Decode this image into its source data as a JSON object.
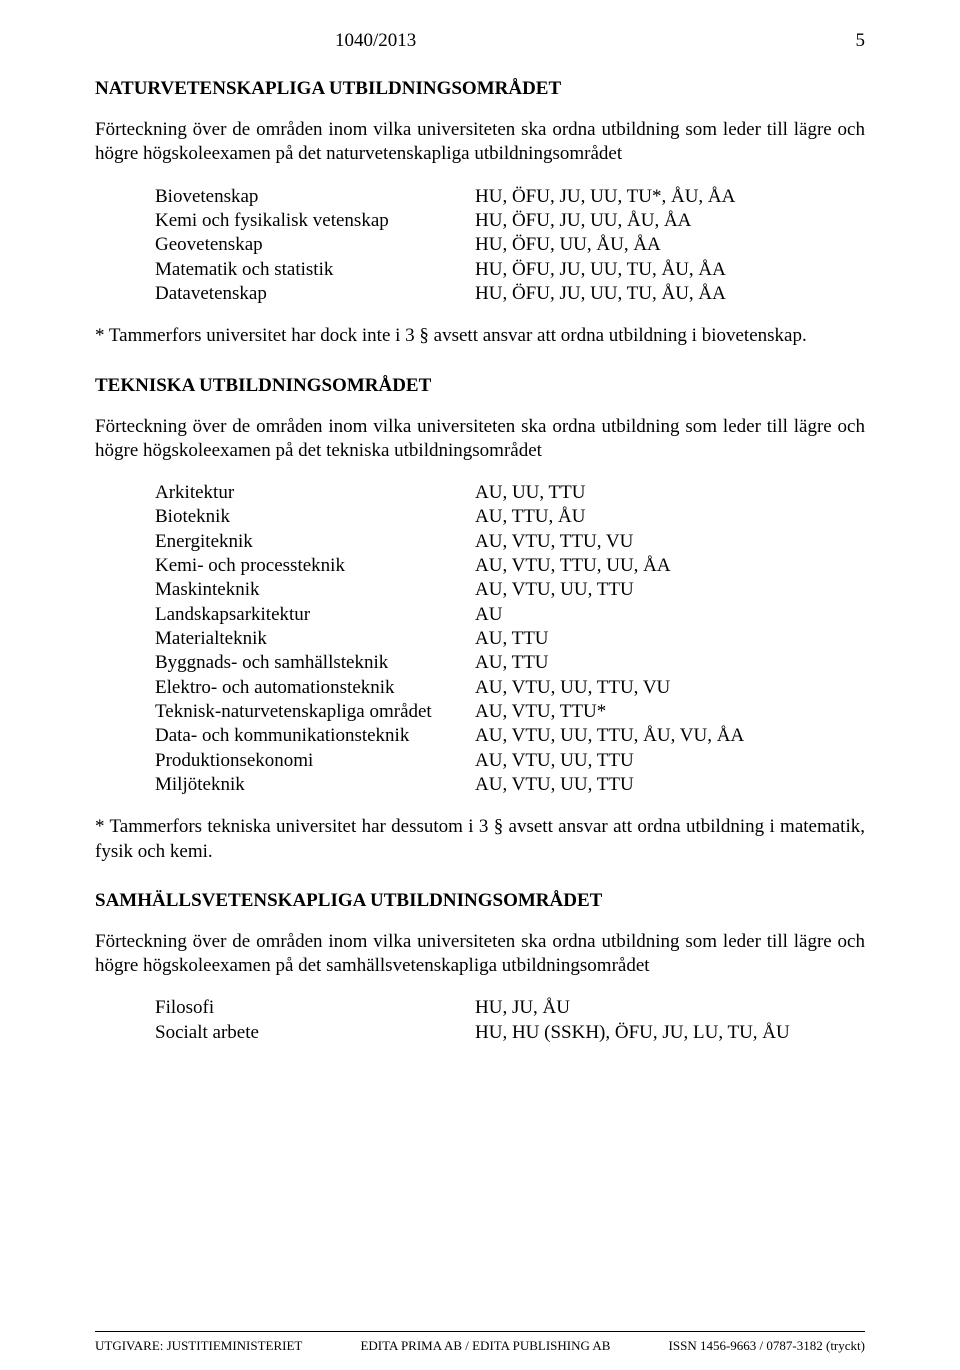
{
  "header": {
    "doc_no": "1040/2013",
    "page_no": "5"
  },
  "sections": [
    {
      "title": "NATURVETENSKAPLIGA UTBILDNINGSOMRÅDET",
      "intro": "Förteckning över de områden inom vilka universiteten ska ordna utbildning som leder till lägre och högre högskoleexamen på det naturvetenskapliga utbildningsområdet",
      "rows": [
        {
          "l": "Biovetenskap",
          "r": "HU, ÖFU, JU, UU, TU*, ÅU, ÅA"
        },
        {
          "l": "Kemi och fysikalisk vetenskap",
          "r": "HU, ÖFU, JU, UU, ÅU, ÅA"
        },
        {
          "l": "Geovetenskap",
          "r": "HU, ÖFU, UU, ÅU, ÅA"
        },
        {
          "l": "Matematik och statistik",
          "r": "HU, ÖFU, JU, UU, TU, ÅU, ÅA"
        },
        {
          "l": "Datavetenskap",
          "r": "HU, ÖFU, JU, UU, TU, ÅU, ÅA"
        }
      ],
      "footnote": "* Tammerfors universitet har dock inte i 3 § avsett ansvar att ordna utbildning i biovetenskap."
    },
    {
      "title": "TEKNISKA UTBILDNINGSOMRÅDET",
      "intro": "Förteckning över de områden inom vilka universiteten ska ordna utbildning som leder till lägre och högre högskoleexamen på det tekniska utbildningsområdet",
      "rows": [
        {
          "l": "Arkitektur",
          "r": "AU, UU, TTU"
        },
        {
          "l": "Bioteknik",
          "r": "AU, TTU, ÅU"
        },
        {
          "l": "Energiteknik",
          "r": "AU, VTU, TTU, VU"
        },
        {
          "l": "Kemi- och processteknik",
          "r": "AU, VTU, TTU, UU, ÅA"
        },
        {
          "l": "Maskinteknik",
          "r": "AU, VTU, UU, TTU"
        },
        {
          "l": "Landskapsarkitektur",
          "r": "AU"
        },
        {
          "l": "Materialteknik",
          "r": "AU, TTU"
        },
        {
          "l": "Byggnads- och samhällsteknik",
          "r": "AU, TTU"
        },
        {
          "l": "Elektro- och automationsteknik",
          "r": "AU, VTU, UU, TTU, VU"
        },
        {
          "l": "Teknisk-naturvetenskapliga området",
          "r": "AU, VTU, TTU*"
        },
        {
          "l": "Data- och kommunikationsteknik",
          "r": "AU, VTU, UU, TTU, ÅU, VU, ÅA"
        },
        {
          "l": "Produktionsekonomi",
          "r": "AU, VTU, UU, TTU"
        },
        {
          "l": "Miljöteknik",
          "r": "AU, VTU, UU, TTU"
        }
      ],
      "footnote": "* Tammerfors tekniska universitet har dessutom i 3 § avsett ansvar att ordna utbildning i matematik, fysik och kemi."
    },
    {
      "title": "SAMHÄLLSVETENSKAPLIGA UTBILDNINGSOMRÅDET",
      "intro": "Förteckning över de områden inom vilka universiteten ska ordna utbildning som leder till lägre och högre högskoleexamen på det samhällsvetenskapliga utbildningsområdet",
      "rows": [
        {
          "l": "Filosofi",
          "r": "HU, JU, ÅU"
        },
        {
          "l": "Socialt arbete",
          "r": "HU, HU (SSKH), ÖFU, JU, LU, TU, ÅU"
        }
      ],
      "footnote": ""
    }
  ],
  "footer": {
    "left": "UTGIVARE: JUSTITIEMINISTERIET",
    "center": "EDITA PRIMA AB / EDITA PUBLISHING AB",
    "right": "ISSN 1456-9663 / 0787-3182 (tryckt)"
  }
}
